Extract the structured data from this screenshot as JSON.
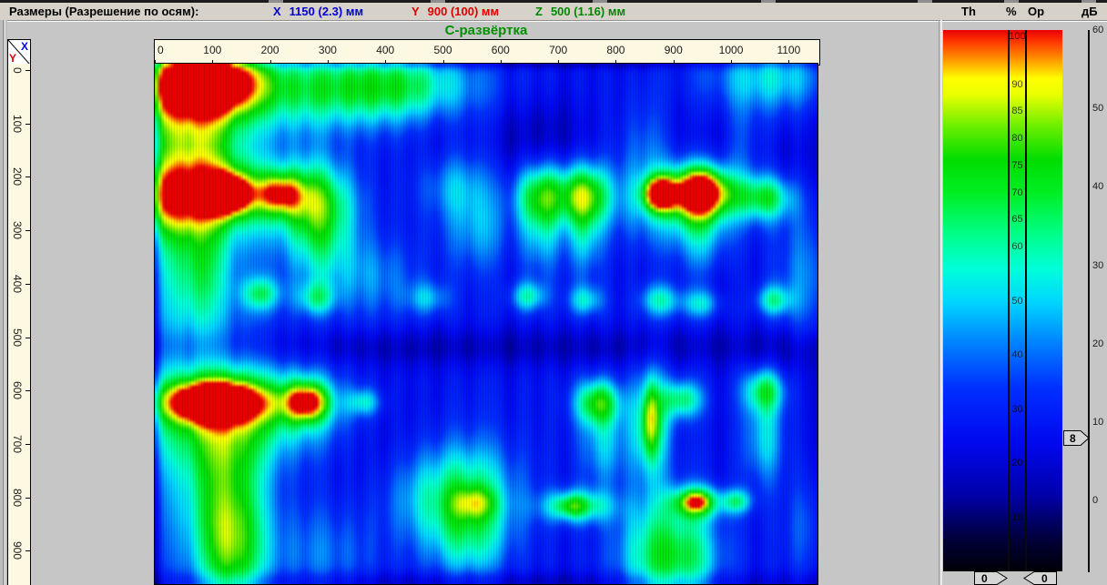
{
  "info_bar": {
    "label": "Размеры (Разрешение по осям):",
    "axes": [
      {
        "letter": "X",
        "value": "1150 (2.3) мм",
        "color": "#0000d8"
      },
      {
        "letter": "Y",
        "value": "900 (100) мм",
        "color": "#dd0000"
      },
      {
        "letter": "Z",
        "value": "500 (1.16) мм",
        "color": "#008800"
      }
    ]
  },
  "main": {
    "title": "С-развёртка"
  },
  "corner": {
    "x_label": "X",
    "y_label": "Y"
  },
  "colorbar": {
    "headers": [
      "Th",
      "%",
      "Op",
      "дБ"
    ],
    "percent_labels": [
      100,
      90,
      85,
      80,
      75,
      70,
      65,
      60,
      50,
      40,
      30,
      20,
      10
    ],
    "db_labels": [
      60,
      50,
      40,
      30,
      20,
      10,
      0
    ],
    "db_marker": "8",
    "bottom_left_handle": "0",
    "bottom_right_handle": "0"
  },
  "chart_data": {
    "type": "heatmap",
    "title": "С-развёртка",
    "units": "мм",
    "x_range": [
      0,
      1150
    ],
    "y_range": [
      0,
      900
    ],
    "x_view": [
      0,
      1150
    ],
    "y_view": [
      -12,
      964
    ],
    "x_ticks": [
      0,
      100,
      200,
      300,
      400,
      500,
      600,
      700,
      800,
      900,
      1000,
      1100
    ],
    "y_ticks": [
      0,
      100,
      200,
      300,
      400,
      500,
      600,
      700,
      800,
      900
    ],
    "amplitude_scale_percent": [
      0,
      100
    ],
    "gain_scale_db": [
      0,
      60
    ],
    "base": 0.3,
    "palette": [
      [
        0.0,
        "#000006"
      ],
      [
        0.06,
        "#00003a"
      ],
      [
        0.14,
        "#0000a8"
      ],
      [
        0.24,
        "#0008f0"
      ],
      [
        0.34,
        "#0030ff"
      ],
      [
        0.42,
        "#0080ff"
      ],
      [
        0.5,
        "#00d8ff"
      ],
      [
        0.56,
        "#00ffd8"
      ],
      [
        0.62,
        "#00ff8c"
      ],
      [
        0.7,
        "#00ee22"
      ],
      [
        0.76,
        "#00dd00"
      ],
      [
        0.82,
        "#66ee00"
      ],
      [
        0.88,
        "#e8ff00"
      ],
      [
        0.91,
        "#ffff00"
      ],
      [
        0.95,
        "#ff8800"
      ],
      [
        0.98,
        "#ff3300"
      ],
      [
        1.0,
        "#e80000"
      ]
    ],
    "blobs": [
      [
        95,
        20,
        55,
        40,
        0.78
      ],
      [
        240,
        35,
        150,
        55,
        0.36
      ],
      [
        430,
        30,
        90,
        45,
        0.28
      ],
      [
        15,
        30,
        35,
        55,
        0.2
      ],
      [
        85,
        125,
        45,
        85,
        0.3
      ],
      [
        15,
        220,
        35,
        260,
        0.18
      ],
      [
        60,
        150,
        80,
        120,
        0.12
      ],
      [
        150,
        300,
        100,
        150,
        0.08
      ],
      [
        126,
        232,
        26,
        24,
        0.7
      ],
      [
        135,
        235,
        95,
        48,
        0.3
      ],
      [
        25,
        238,
        55,
        45,
        0.28
      ],
      [
        216,
        232,
        28,
        26,
        0.4
      ],
      [
        282,
        245,
        45,
        55,
        0.36
      ],
      [
        290,
        330,
        40,
        60,
        0.22
      ],
      [
        82,
        375,
        35,
        95,
        0.3
      ],
      [
        185,
        420,
        24,
        22,
        0.3
      ],
      [
        280,
        428,
        24,
        22,
        0.26
      ],
      [
        380,
        390,
        55,
        55,
        0.16
      ],
      [
        520,
        215,
        45,
        45,
        0.2
      ],
      [
        565,
        300,
        45,
        55,
        0.18
      ],
      [
        671,
        232,
        34,
        42,
        0.45
      ],
      [
        747,
        232,
        30,
        40,
        0.46
      ],
      [
        747,
        310,
        22,
        55,
        0.22
      ],
      [
        671,
        310,
        28,
        55,
        0.2
      ],
      [
        877,
        232,
        20,
        22,
        0.68
      ],
      [
        948,
        228,
        34,
        32,
        0.75
      ],
      [
        915,
        245,
        85,
        55,
        0.3
      ],
      [
        950,
        310,
        35,
        65,
        0.22
      ],
      [
        1058,
        239,
        36,
        30,
        0.4
      ],
      [
        1070,
        15,
        80,
        45,
        0.26
      ],
      [
        1135,
        390,
        40,
        95,
        0.18
      ],
      [
        474,
        428,
        26,
        22,
        0.2
      ],
      [
        648,
        425,
        22,
        20,
        0.3
      ],
      [
        747,
        432,
        22,
        20,
        0.26
      ],
      [
        877,
        432,
        25,
        22,
        0.3
      ],
      [
        948,
        438,
        24,
        20,
        0.26
      ],
      [
        1074,
        432,
        22,
        20,
        0.3
      ],
      [
        103,
        622,
        58,
        26,
        0.8
      ],
      [
        122,
        645,
        110,
        70,
        0.35
      ],
      [
        264,
        622,
        26,
        24,
        0.5
      ],
      [
        264,
        628,
        48,
        45,
        0.22
      ],
      [
        363,
        623,
        20,
        18,
        0.26
      ],
      [
        125,
        780,
        48,
        130,
        0.32
      ],
      [
        135,
        905,
        38,
        85,
        0.3
      ],
      [
        545,
        790,
        62,
        70,
        0.3
      ],
      [
        555,
        812,
        26,
        20,
        0.22
      ],
      [
        455,
        800,
        60,
        60,
        0.16
      ],
      [
        732,
        818,
        42,
        22,
        0.38
      ],
      [
        722,
        818,
        18,
        14,
        0.15
      ],
      [
        940,
        810,
        30,
        20,
        0.5
      ],
      [
        940,
        810,
        12,
        10,
        0.18
      ],
      [
        1011,
        809,
        18,
        16,
        0.3
      ],
      [
        861,
        662,
        24,
        68,
        0.4
      ],
      [
        861,
        655,
        9,
        48,
        0.22
      ],
      [
        769,
        623,
        28,
        30,
        0.45
      ],
      [
        916,
        618,
        25,
        25,
        0.36
      ],
      [
        1058,
        600,
        26,
        30,
        0.38
      ],
      [
        1058,
        690,
        24,
        60,
        0.25
      ],
      [
        862,
        905,
        48,
        80,
        0.3
      ],
      [
        928,
        912,
        45,
        70,
        0.28
      ],
      [
        300,
        905,
        90,
        70,
        0.15
      ],
      [
        60,
        800,
        60,
        120,
        0.1
      ],
      [
        780,
        700,
        30,
        55,
        0.22
      ],
      [
        545,
        880,
        50,
        60,
        0.22
      ],
      [
        850,
        140,
        30,
        70,
        0.1
      ],
      [
        1020,
        130,
        25,
        60,
        0.08
      ],
      [
        1130,
        860,
        30,
        70,
        0.12
      ],
      [
        575,
        520,
        600,
        26,
        -0.1
      ],
      [
        575,
        -15,
        600,
        8,
        -0.14
      ],
      [
        575,
        960,
        600,
        14,
        -0.1
      ],
      [
        700,
        140,
        45,
        60,
        -0.06
      ],
      [
        640,
        120,
        60,
        50,
        -0.06
      ],
      [
        950,
        150,
        45,
        70,
        -0.06
      ],
      [
        1100,
        180,
        40,
        60,
        -0.05
      ],
      [
        980,
        270,
        55,
        55,
        -0.07
      ],
      [
        620,
        265,
        25,
        90,
        -0.06
      ],
      [
        490,
        140,
        30,
        80,
        -0.05
      ],
      [
        400,
        800,
        60,
        120,
        -0.07
      ],
      [
        960,
        395,
        45,
        50,
        -0.06
      ],
      [
        1100,
        545,
        50,
        55,
        -0.06
      ]
    ],
    "streaks": [
      [
        221,
        10,
        -0.05
      ],
      [
        261,
        9,
        -0.05
      ],
      [
        316,
        10,
        -0.06
      ],
      [
        356,
        9,
        -0.05
      ],
      [
        398,
        10,
        -0.06
      ],
      [
        443,
        10,
        -0.05
      ],
      [
        490,
        10,
        -0.06
      ],
      [
        545,
        9,
        -0.05
      ],
      [
        616,
        10,
        -0.07
      ],
      [
        664,
        9,
        -0.05
      ],
      [
        711,
        10,
        -0.06
      ],
      [
        759,
        9,
        -0.05
      ],
      [
        806,
        10,
        -0.06
      ],
      [
        846,
        9,
        -0.05
      ],
      [
        909,
        11,
        -0.06
      ],
      [
        980,
        12,
        -0.07
      ],
      [
        1043,
        10,
        -0.06
      ],
      [
        1094,
        10,
        -0.06
      ],
      [
        1132,
        8,
        -0.05
      ],
      [
        60,
        8,
        -0.04
      ],
      [
        140,
        8,
        -0.04
      ],
      [
        3,
        5,
        -0.15
      ],
      [
        1147,
        6,
        -0.08
      ]
    ]
  }
}
